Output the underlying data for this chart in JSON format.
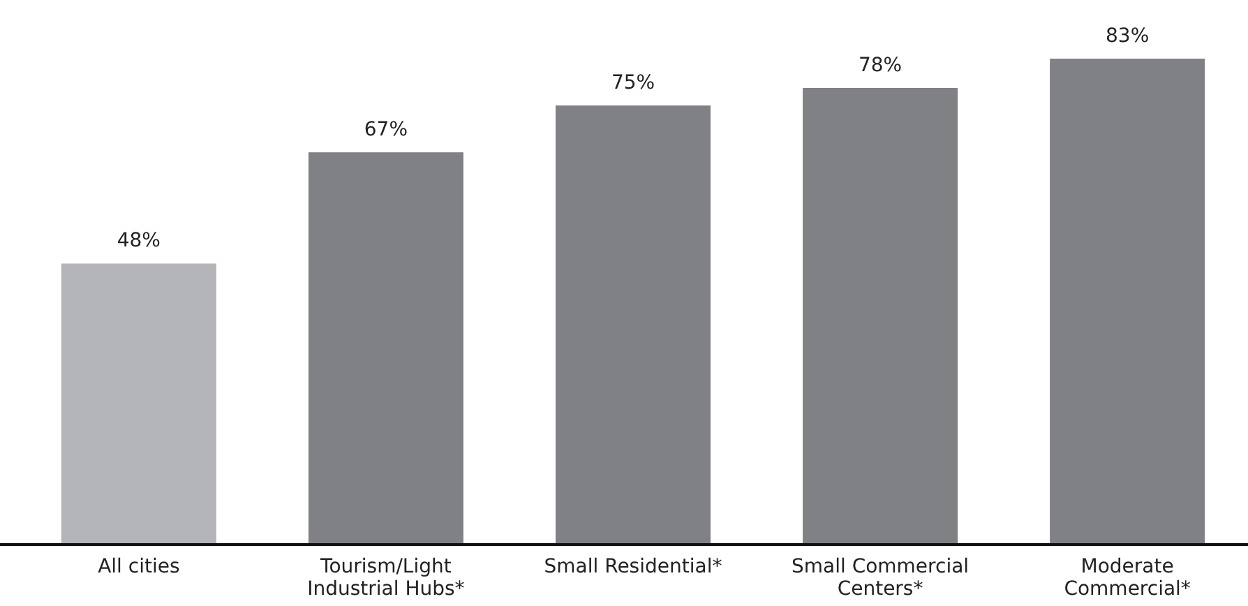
{
  "chart_data": {
    "type": "bar",
    "categories": [
      "All cities",
      "Tourism/Light Industrial Hubs*",
      "Small Residential*",
      "Small Commercial Centers*",
      "Moderate Commercial*"
    ],
    "values": [
      48,
      67,
      75,
      78,
      83
    ],
    "colors": [
      "#b3b5b8",
      "#808184",
      "#808184",
      "#808184",
      "#808184"
    ],
    "value_labels": [
      "48%",
      "67%",
      "75%",
      "78%",
      "83%"
    ]
  }
}
